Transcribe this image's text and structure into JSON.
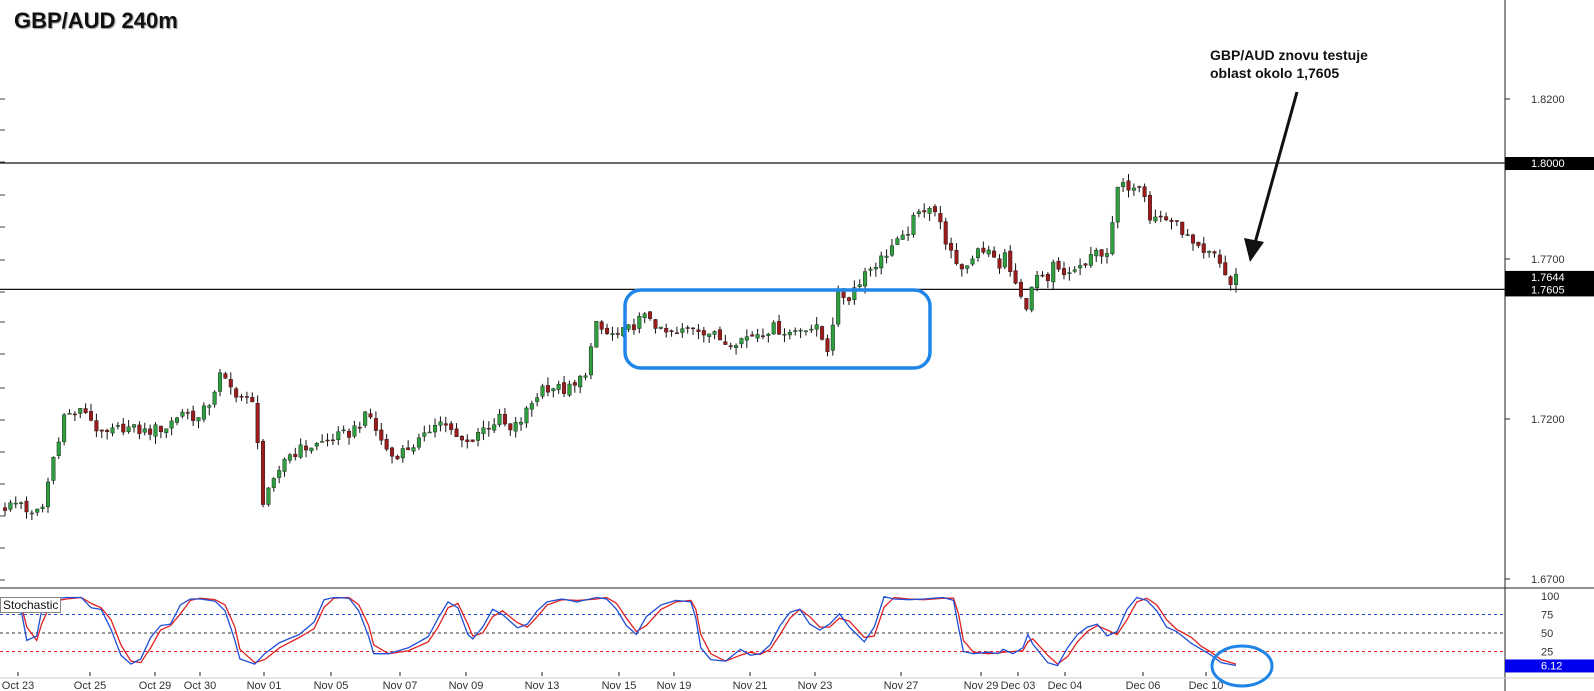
{
  "chart_title": "GBP/AUD 240m",
  "annotation": {
    "line1": "GBP/AUD znovu testuje",
    "line2": "oblast okolo 1,7605"
  },
  "indicator": {
    "name": "Stochastic",
    "levels": [
      "100",
      "75",
      "50",
      "25"
    ],
    "last_value": "6.12"
  },
  "colors": {
    "bull_candle": "#2e9e3e",
    "bear_candle": "#9b1c1c",
    "stoch_main": "#1f4fd6",
    "stoch_signal": "#e02020",
    "highlight": "#1f86e8",
    "price_tag": "#000000",
    "stoch_tag": "#0000ee"
  },
  "chart_data": {
    "type": "candlestick",
    "title": "GBP/AUD 240m",
    "y_ticks": [
      "1.8200",
      "1.7700",
      "1.7200",
      "1.6700"
    ],
    "ylim": [
      1.665,
      1.85
    ],
    "x_ticks": [
      "Oct 23",
      "Oct 25",
      "Oct 29",
      "Oct 30",
      "Nov 01",
      "Nov 05",
      "Nov 07",
      "Nov 09",
      "Nov 13",
      "Nov 15",
      "Nov 19",
      "Nov 21",
      "Nov 23",
      "Nov 27",
      "Nov 29",
      "Dec 03",
      "Dec 04",
      "Dec 06",
      "Dec 10"
    ],
    "horizontal_lines": [
      {
        "value": 1.8,
        "label": "1.8000"
      },
      {
        "value": 1.7605,
        "label": "1.7605"
      }
    ],
    "last_price": "1.7644",
    "price_path": [
      [
        0,
        1.6925
      ],
      [
        3,
        1.694
      ],
      [
        5,
        1.6895
      ],
      [
        7,
        1.6925
      ],
      [
        9,
        1.708
      ],
      [
        11,
        1.721
      ],
      [
        15,
        1.7225
      ],
      [
        18,
        1.7145
      ],
      [
        22,
        1.7175
      ],
      [
        26,
        1.716
      ],
      [
        30,
        1.7175
      ],
      [
        33,
        1.7225
      ],
      [
        36,
        1.72
      ],
      [
        38,
        1.725
      ],
      [
        40,
        1.7335
      ],
      [
        42,
        1.7295
      ],
      [
        44,
        1.727
      ],
      [
        46,
        1.7245
      ],
      [
        47,
        1.714
      ],
      [
        48,
        1.6935
      ],
      [
        50,
        1.7
      ],
      [
        52,
        1.708
      ],
      [
        55,
        1.7105
      ],
      [
        58,
        1.712
      ],
      [
        61,
        1.714
      ],
      [
        64,
        1.7155
      ],
      [
        67,
        1.7205
      ],
      [
        68,
        1.7205
      ],
      [
        70,
        1.713
      ],
      [
        72,
        1.7085
      ],
      [
        74,
        1.71
      ],
      [
        76,
        1.712
      ],
      [
        78,
        1.714
      ],
      [
        80,
        1.7195
      ],
      [
        82,
        1.7185
      ],
      [
        84,
        1.7135
      ],
      [
        86,
        1.7125
      ],
      [
        88,
        1.716
      ],
      [
        90,
        1.718
      ],
      [
        92,
        1.72
      ],
      [
        94,
        1.716
      ],
      [
        96,
        1.7195
      ],
      [
        98,
        1.725
      ],
      [
        100,
        1.73
      ],
      [
        102,
        1.73
      ],
      [
        104,
        1.729
      ],
      [
        106,
        1.73
      ],
      [
        108,
        1.735
      ],
      [
        110,
        1.749
      ],
      [
        112,
        1.7465
      ],
      [
        114,
        1.746
      ],
      [
        116,
        1.748
      ],
      [
        118,
        1.751
      ],
      [
        120,
        1.752
      ],
      [
        122,
        1.747
      ],
      [
        125,
        1.7465
      ],
      [
        128,
        1.749
      ],
      [
        131,
        1.747
      ],
      [
        134,
        1.744
      ],
      [
        137,
        1.745
      ],
      [
        140,
        1.747
      ],
      [
        143,
        1.7485
      ],
      [
        146,
        1.747
      ],
      [
        149,
        1.749
      ],
      [
        151,
        1.748
      ],
      [
        153,
        1.742
      ],
      [
        155,
        1.759
      ],
      [
        157,
        1.758
      ],
      [
        158,
        1.761
      ],
      [
        160,
        1.766
      ],
      [
        163,
        1.77
      ],
      [
        165,
        1.774
      ],
      [
        167,
        1.776
      ],
      [
        169,
        1.782
      ],
      [
        171,
        1.786
      ],
      [
        172,
        1.787
      ],
      [
        173,
        1.785
      ],
      [
        175,
        1.776
      ],
      [
        177,
        1.767
      ],
      [
        179,
        1.768
      ],
      [
        181,
        1.774
      ],
      [
        183,
        1.772
      ],
      [
        185,
        1.768
      ],
      [
        186,
        1.771
      ],
      [
        187,
        1.766
      ],
      [
        188,
        1.762
      ],
      [
        189,
        1.7575
      ],
      [
        190,
        1.756
      ],
      [
        192,
        1.7645
      ],
      [
        194,
        1.762
      ],
      [
        195,
        1.768
      ],
      [
        197,
        1.764
      ],
      [
        199,
        1.767
      ],
      [
        201,
        1.768
      ],
      [
        203,
        1.772
      ],
      [
        205,
        1.7725
      ],
      [
        206,
        1.78
      ],
      [
        207,
        1.792
      ],
      [
        209,
        1.793
      ],
      [
        211,
        1.794
      ],
      [
        212,
        1.791
      ],
      [
        213,
        1.783
      ],
      [
        215,
        1.783
      ],
      [
        217,
        1.782
      ],
      [
        219,
        1.779
      ],
      [
        221,
        1.774
      ],
      [
        223,
        1.771
      ],
      [
        225,
        1.7715
      ],
      [
        226,
        1.769
      ],
      [
        227,
        1.765
      ],
      [
        228,
        1.762
      ],
      [
        229,
        1.7644
      ]
    ],
    "stochastic_main_path": [
      [
        0,
        96
      ],
      [
        2,
        92
      ],
      [
        4,
        76
      ],
      [
        5,
        40
      ],
      [
        7,
        46
      ],
      [
        8,
        80
      ],
      [
        10,
        96
      ],
      [
        13,
        98
      ],
      [
        16,
        98
      ],
      [
        18,
        84
      ],
      [
        20,
        82
      ],
      [
        22,
        55
      ],
      [
        24,
        20
      ],
      [
        26,
        8
      ],
      [
        28,
        15
      ],
      [
        30,
        44
      ],
      [
        32,
        60
      ],
      [
        34,
        62
      ],
      [
        36,
        88
      ],
      [
        38,
        96
      ],
      [
        40,
        96
      ],
      [
        43,
        93
      ],
      [
        45,
        80
      ],
      [
        47,
        40
      ],
      [
        48,
        15
      ],
      [
        51,
        8
      ],
      [
        53,
        22
      ],
      [
        56,
        37
      ],
      [
        60,
        48
      ],
      [
        63,
        65
      ],
      [
        65,
        95
      ],
      [
        67,
        98
      ],
      [
        70,
        97
      ],
      [
        72,
        80
      ],
      [
        74,
        45
      ],
      [
        75,
        22
      ],
      [
        78,
        22
      ],
      [
        82,
        30
      ],
      [
        86,
        45
      ],
      [
        88,
        70
      ],
      [
        90,
        92
      ],
      [
        92,
        84
      ],
      [
        94,
        48
      ],
      [
        95,
        42
      ],
      [
        97,
        58
      ],
      [
        99,
        82
      ],
      [
        101,
        75
      ],
      [
        104,
        57
      ],
      [
        106,
        62
      ],
      [
        108,
        80
      ],
      [
        110,
        92
      ],
      [
        113,
        96
      ],
      [
        116,
        92
      ],
      [
        120,
        98
      ],
      [
        122,
        96
      ],
      [
        124,
        82
      ],
      [
        126,
        60
      ],
      [
        128,
        48
      ],
      [
        130,
        72
      ],
      [
        133,
        88
      ],
      [
        136,
        94
      ],
      [
        139,
        92
      ],
      [
        140,
        70
      ],
      [
        141,
        30
      ],
      [
        143,
        14
      ],
      [
        146,
        12
      ],
      [
        149,
        28
      ],
      [
        151,
        20
      ],
      [
        153,
        22
      ],
      [
        155,
        34
      ],
      [
        157,
        60
      ],
      [
        159,
        78
      ],
      [
        161,
        82
      ],
      [
        163,
        62
      ],
      [
        165,
        54
      ],
      [
        167,
        62
      ],
      [
        169,
        76
      ],
      [
        171,
        58
      ],
      [
        174,
        38
      ],
      [
        176,
        58
      ],
      [
        178,
        99
      ],
      [
        180,
        96
      ],
      [
        183,
        95
      ],
      [
        186,
        96
      ],
      [
        188,
        97
      ],
      [
        190,
        98
      ],
      [
        192,
        94
      ],
      [
        193,
        58
      ],
      [
        194,
        25
      ],
      [
        196,
        22
      ],
      [
        199,
        24
      ],
      [
        201,
        22
      ],
      [
        202,
        28
      ],
      [
        204,
        22
      ],
      [
        206,
        30
      ],
      [
        207,
        48
      ],
      [
        208,
        35
      ],
      [
        211,
        10
      ],
      [
        213,
        6
      ],
      [
        215,
        30
      ],
      [
        217,
        48
      ],
      [
        219,
        58
      ],
      [
        221,
        62
      ],
      [
        223,
        46
      ],
      [
        225,
        52
      ],
      [
        227,
        82
      ],
      [
        229,
        98
      ],
      [
        231,
        94
      ],
      [
        233,
        80
      ],
      [
        235,
        58
      ],
      [
        237,
        52
      ],
      [
        240,
        36
      ],
      [
        242,
        28
      ],
      [
        244,
        20
      ],
      [
        246,
        10
      ],
      [
        249,
        6.12
      ]
    ],
    "stochastic_signal_path": [
      [
        0,
        94
      ],
      [
        2,
        94
      ],
      [
        4,
        84
      ],
      [
        5,
        58
      ],
      [
        7,
        40
      ],
      [
        8,
        62
      ],
      [
        10,
        92
      ],
      [
        13,
        96
      ],
      [
        16,
        98
      ],
      [
        18,
        90
      ],
      [
        20,
        84
      ],
      [
        22,
        68
      ],
      [
        24,
        34
      ],
      [
        26,
        12
      ],
      [
        28,
        10
      ],
      [
        30,
        30
      ],
      [
        32,
        54
      ],
      [
        34,
        60
      ],
      [
        36,
        76
      ],
      [
        38,
        94
      ],
      [
        40,
        97
      ],
      [
        43,
        95
      ],
      [
        45,
        88
      ],
      [
        47,
        58
      ],
      [
        48,
        28
      ],
      [
        51,
        10
      ],
      [
        53,
        14
      ],
      [
        56,
        30
      ],
      [
        60,
        44
      ],
      [
        63,
        56
      ],
      [
        65,
        85
      ],
      [
        67,
        97
      ],
      [
        70,
        98
      ],
      [
        72,
        88
      ],
      [
        74,
        60
      ],
      [
        75,
        34
      ],
      [
        78,
        22
      ],
      [
        82,
        26
      ],
      [
        86,
        38
      ],
      [
        88,
        58
      ],
      [
        90,
        84
      ],
      [
        92,
        90
      ],
      [
        94,
        62
      ],
      [
        95,
        46
      ],
      [
        97,
        50
      ],
      [
        99,
        72
      ],
      [
        101,
        80
      ],
      [
        104,
        64
      ],
      [
        106,
        58
      ],
      [
        108,
        72
      ],
      [
        110,
        88
      ],
      [
        113,
        95
      ],
      [
        116,
        94
      ],
      [
        120,
        96
      ],
      [
        122,
        98
      ],
      [
        124,
        90
      ],
      [
        126,
        70
      ],
      [
        128,
        52
      ],
      [
        130,
        60
      ],
      [
        133,
        82
      ],
      [
        136,
        92
      ],
      [
        139,
        94
      ],
      [
        140,
        82
      ],
      [
        141,
        48
      ],
      [
        143,
        22
      ],
      [
        146,
        12
      ],
      [
        149,
        20
      ],
      [
        151,
        24
      ],
      [
        153,
        21
      ],
      [
        155,
        28
      ],
      [
        157,
        48
      ],
      [
        159,
        70
      ],
      [
        161,
        82
      ],
      [
        163,
        72
      ],
      [
        165,
        58
      ],
      [
        167,
        58
      ],
      [
        169,
        70
      ],
      [
        171,
        66
      ],
      [
        174,
        44
      ],
      [
        176,
        46
      ],
      [
        178,
        85
      ],
      [
        180,
        98
      ],
      [
        183,
        96
      ],
      [
        186,
        95
      ],
      [
        188,
        96
      ],
      [
        190,
        97
      ],
      [
        192,
        97
      ],
      [
        193,
        76
      ],
      [
        194,
        40
      ],
      [
        196,
        24
      ],
      [
        199,
        22
      ],
      [
        201,
        23
      ],
      [
        202,
        24
      ],
      [
        204,
        25
      ],
      [
        206,
        26
      ],
      [
        207,
        38
      ],
      [
        208,
        42
      ],
      [
        211,
        20
      ],
      [
        213,
        8
      ],
      [
        215,
        18
      ],
      [
        217,
        38
      ],
      [
        219,
        52
      ],
      [
        221,
        60
      ],
      [
        223,
        54
      ],
      [
        225,
        48
      ],
      [
        227,
        68
      ],
      [
        229,
        92
      ],
      [
        231,
        97
      ],
      [
        233,
        88
      ],
      [
        235,
        68
      ],
      [
        237,
        55
      ],
      [
        240,
        44
      ],
      [
        242,
        32
      ],
      [
        244,
        24
      ],
      [
        246,
        14
      ],
      [
        249,
        8
      ]
    ]
  }
}
